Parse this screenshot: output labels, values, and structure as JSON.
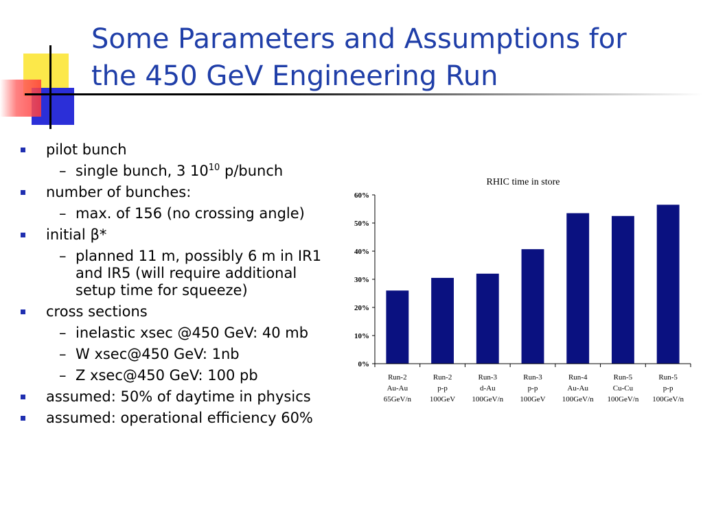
{
  "slide": {
    "title_line1": "Some Parameters and Assumptions for",
    "title_line2": "the 450 GeV Engineering Run"
  },
  "bullets": {
    "b1": "pilot bunch",
    "b1_s1_pre": "single bunch, 3 10",
    "b1_s1_sup": "10",
    "b1_s1_post": " p/bunch",
    "b2": "number of bunches:",
    "b2_s1": "max. of 156 (no crossing angle)",
    "b3_pre": "initial ",
    "b3_beta": "β",
    "b3_post": "*",
    "b3_s1": "planned 11 m, possibly 6 m in IR1 and IR5  (will require additional setup time for squeeze)",
    "b4": "cross sections",
    "b4_s1": "inelastic xsec @450 GeV: 40 mb",
    "b4_s2": "W xsec@450 GeV: 1nb",
    "b4_s3": "Z xsec@450 GeV: 100 pb",
    "b5": "assumed: 50% of daytime in physics",
    "b6": "assumed: operational efficiency 60%",
    "dash": "–"
  },
  "chart_data": {
    "type": "bar",
    "title": "RHIC time in store",
    "categories": [
      [
        "Run-2",
        "Au-Au",
        "65GeV/n"
      ],
      [
        "Run-2",
        "p-p",
        "100GeV"
      ],
      [
        "Run-3",
        "d-Au",
        "100GeV/n"
      ],
      [
        "Run-3",
        "p-p",
        "100GeV"
      ],
      [
        "Run-4",
        "Au-Au",
        "100GeV/n"
      ],
      [
        "Run-5",
        "Cu-Cu",
        "100GeV/n"
      ],
      [
        "Run-5",
        "p-p",
        "100GeV/n"
      ]
    ],
    "values": [
      26,
      30.5,
      32,
      40.7,
      53.5,
      52.5,
      56.5
    ],
    "ylim": [
      0,
      60
    ],
    "yticks": [
      "0%",
      "10%",
      "20%",
      "30%",
      "40%",
      "50%",
      "60%"
    ],
    "bar_color": "#0a1180",
    "grid": false
  }
}
